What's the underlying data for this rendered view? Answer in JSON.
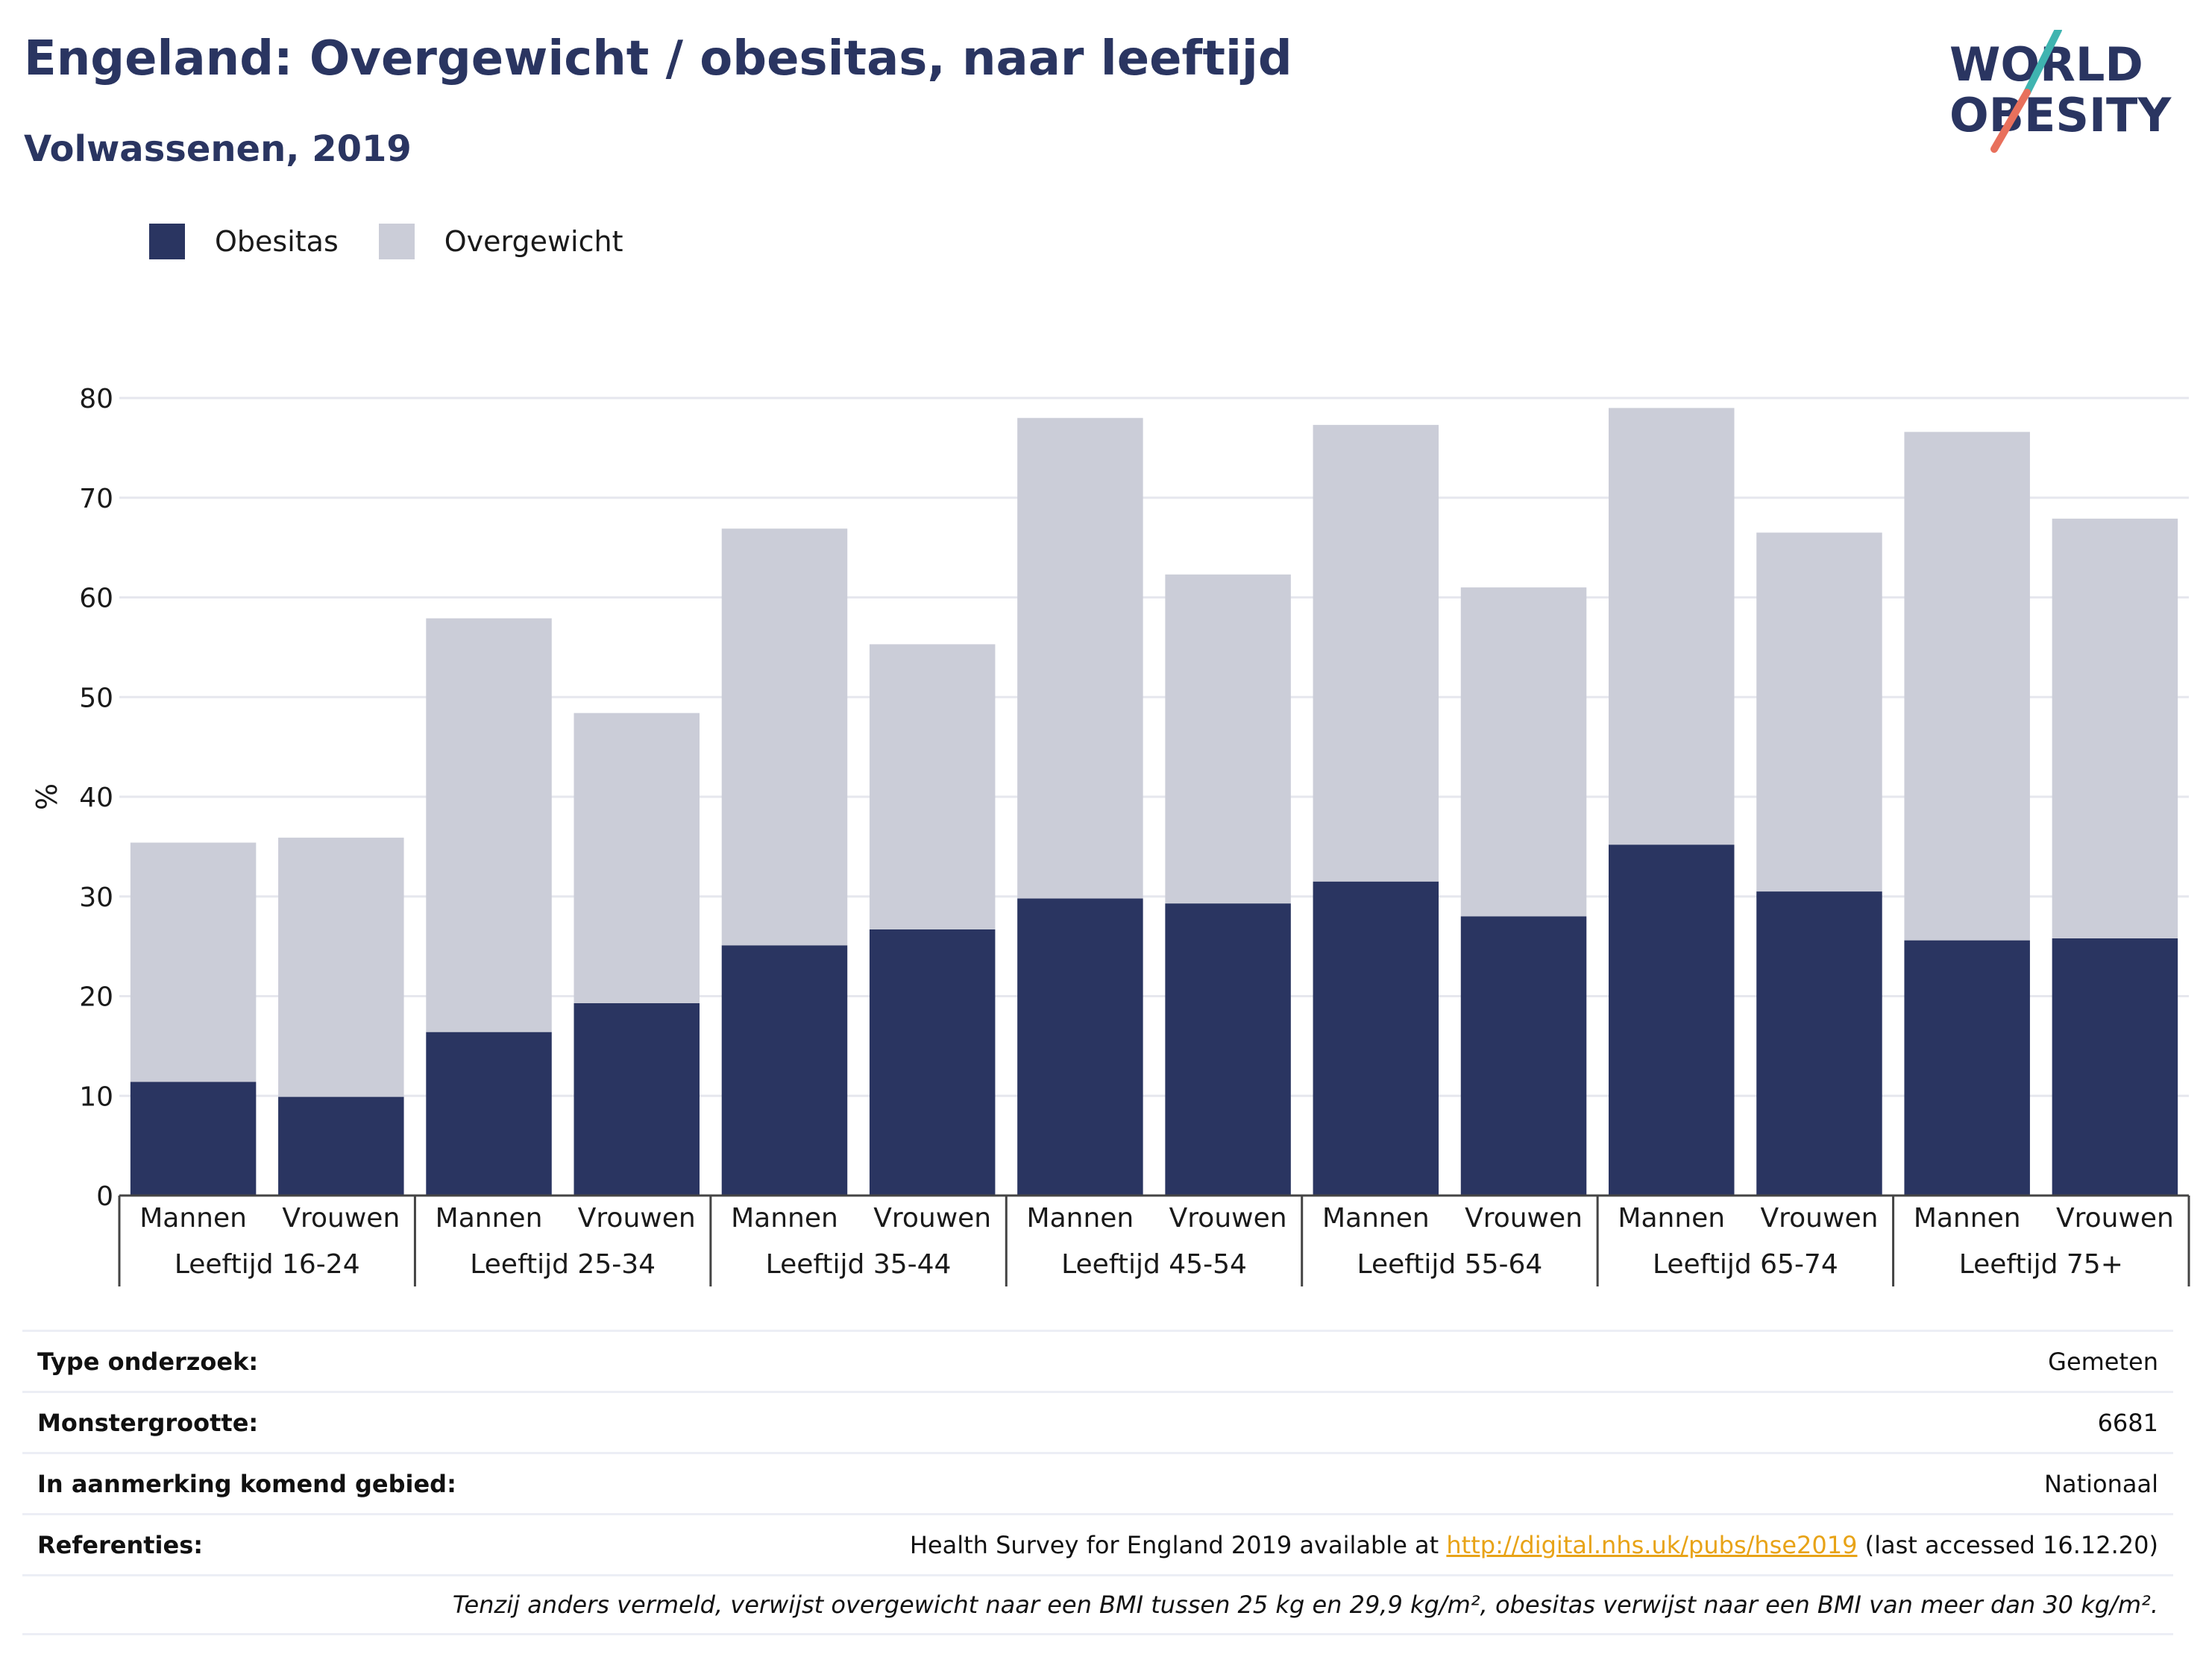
{
  "header": {
    "title": "Engeland: Overgewicht / obesitas, naar leeftijd",
    "subtitle": "Volwassenen, 2019"
  },
  "logo": {
    "line1": "WORLD",
    "line2": "OBESITY",
    "slash_top_color": "#3fb4b0",
    "slash_bottom_color": "#e8705c",
    "text_color": "#2a3561"
  },
  "legend": {
    "items": [
      {
        "label": "Obesitas",
        "color": "#2a3561"
      },
      {
        "label": "Overgewicht",
        "color": "#cbcdd8"
      }
    ]
  },
  "chart_data": {
    "type": "bar",
    "stacked": true,
    "ylabel": "%",
    "ylim": [
      0,
      80
    ],
    "yticks": [
      0,
      10,
      20,
      30,
      40,
      50,
      60,
      70,
      80
    ],
    "grid": true,
    "legend_position": "top-left",
    "groups": [
      "Leeftijd 16-24",
      "Leeftijd 25-34",
      "Leeftijd 35-44",
      "Leeftijd 45-54",
      "Leeftijd 55-64",
      "Leeftijd 65-74",
      "Leeftijd 75+"
    ],
    "subcategories": [
      "Mannen",
      "Vrouwen"
    ],
    "series": [
      {
        "name": "Obesitas",
        "color": "#2a3561",
        "values": [
          11.4,
          9.9,
          16.4,
          19.3,
          25.1,
          26.7,
          29.8,
          29.3,
          31.5,
          28.0,
          35.2,
          30.5,
          25.6,
          25.8
        ]
      },
      {
        "name": "Overgewicht",
        "color": "#cbcdd8",
        "values": [
          24.0,
          26.0,
          41.5,
          29.1,
          41.8,
          28.6,
          48.2,
          33.0,
          45.8,
          33.0,
          43.8,
          36.0,
          51.0,
          42.1
        ]
      }
    ]
  },
  "meta": {
    "type_label": "Type onderzoek:",
    "type_value": "Gemeten",
    "sample_label": "Monstergrootte:",
    "sample_value": "6681",
    "area_label": "In aanmerking komend gebied:",
    "area_value": "Nationaal",
    "refs_label": "Referenties:",
    "refs_prefix": "Health Survey for England 2019 available at ",
    "refs_link": "http://digital.nhs.uk/pubs/hse2019",
    "refs_suffix": " (last accessed 16.12.20)",
    "footnote": "Tenzij anders vermeld, verwijst overgewicht naar een BMI tussen 25 kg en 29,9 kg/m², obesitas verwijst naar een BMI van meer dan 30 kg/m²."
  }
}
